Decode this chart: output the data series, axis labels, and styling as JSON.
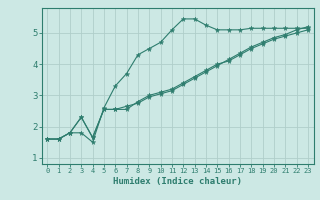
{
  "xlabel": "Humidex (Indice chaleur)",
  "bg_color": "#cce8e4",
  "grid_color_major": "#b0ceca",
  "grid_color_minor": "#c0dcda",
  "line_color": "#2e7d6e",
  "spine_color": "#2e7d6e",
  "xlim": [
    -0.5,
    23.5
  ],
  "ylim": [
    0.8,
    5.8
  ],
  "xticks": [
    0,
    1,
    2,
    3,
    4,
    5,
    6,
    7,
    8,
    9,
    10,
    11,
    12,
    13,
    14,
    15,
    16,
    17,
    18,
    19,
    20,
    21,
    22,
    23
  ],
  "yticks": [
    1,
    2,
    3,
    4,
    5
  ],
  "line1_x": [
    0,
    1,
    2,
    3,
    4,
    5,
    6,
    7,
    8,
    9,
    10,
    11,
    12,
    13,
    14,
    15,
    16,
    17,
    18,
    19,
    20,
    21,
    22,
    23
  ],
  "line1_y": [
    1.6,
    1.6,
    1.8,
    1.8,
    1.5,
    2.6,
    3.3,
    3.7,
    4.3,
    4.5,
    4.7,
    5.1,
    5.45,
    5.45,
    5.25,
    5.1,
    5.1,
    5.1,
    5.15,
    5.15,
    5.15,
    5.15,
    5.15,
    5.15
  ],
  "line2_x": [
    0,
    1,
    2,
    3,
    4,
    5,
    6,
    7,
    8,
    9,
    10,
    11,
    12,
    13,
    14,
    15,
    16,
    17,
    18,
    19,
    20,
    21,
    22,
    23
  ],
  "line2_y": [
    1.6,
    1.6,
    1.8,
    2.3,
    1.65,
    2.55,
    2.55,
    2.55,
    2.8,
    3.0,
    3.1,
    3.2,
    3.4,
    3.6,
    3.8,
    4.0,
    4.1,
    4.3,
    4.5,
    4.65,
    4.8,
    4.9,
    5.0,
    5.1
  ],
  "line3_x": [
    0,
    1,
    2,
    3,
    4,
    5,
    6,
    7,
    8,
    9,
    10,
    11,
    12,
    13,
    14,
    15,
    16,
    17,
    18,
    19,
    20,
    21,
    22,
    23
  ],
  "line3_y": [
    1.6,
    1.6,
    1.8,
    2.3,
    1.65,
    2.55,
    2.55,
    2.65,
    2.75,
    2.95,
    3.05,
    3.15,
    3.35,
    3.55,
    3.75,
    3.95,
    4.15,
    4.35,
    4.55,
    4.7,
    4.85,
    4.95,
    5.1,
    5.2
  ]
}
